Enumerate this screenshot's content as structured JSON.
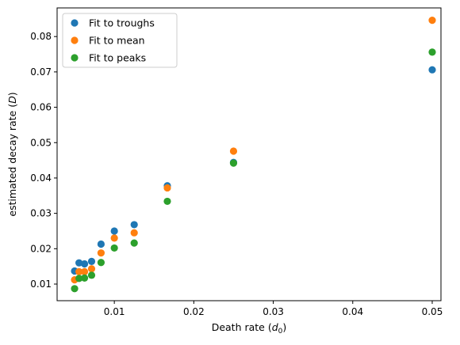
{
  "chart_data": {
    "type": "scatter",
    "xlabel_main": "Death rate (",
    "xlabel_sym": "d",
    "xlabel_sub": "0",
    "xlabel_end": ")",
    "ylabel_main": "estimated decay rate (",
    "ylabel_sym": "D",
    "ylabel_end": ")",
    "xlim": [
      0.0028,
      0.0511
    ],
    "ylim": [
      0.0053,
      0.0881
    ],
    "x_ticks": [
      0.01,
      0.02,
      0.03,
      0.04,
      0.05
    ],
    "x_tick_labels": [
      "0.01",
      "0.02",
      "0.03",
      "0.04",
      "0.05"
    ],
    "y_ticks": [
      0.01,
      0.02,
      0.03,
      0.04,
      0.05,
      0.06,
      0.07,
      0.08
    ],
    "y_tick_labels": [
      "0.01",
      "0.02",
      "0.03",
      "0.04",
      "0.05",
      "0.06",
      "0.07",
      "0.08"
    ],
    "grid": false,
    "legend_position": "top-left",
    "series": [
      {
        "name": "Fit to troughs",
        "color": "#1f77b4",
        "points": [
          [
            0.005,
            0.0137
          ],
          [
            0.00556,
            0.016
          ],
          [
            0.00625,
            0.0157
          ],
          [
            0.00714,
            0.0164
          ],
          [
            0.00833,
            0.0213
          ],
          [
            0.01,
            0.025
          ],
          [
            0.0125,
            0.0268
          ],
          [
            0.01667,
            0.0378
          ],
          [
            0.025,
            0.0444
          ],
          [
            0.05,
            0.0706
          ]
        ]
      },
      {
        "name": "Fit to mean",
        "color": "#ff7f0e",
        "points": [
          [
            0.005,
            0.0112
          ],
          [
            0.00556,
            0.0135
          ],
          [
            0.00625,
            0.0135
          ],
          [
            0.00714,
            0.0143
          ],
          [
            0.00833,
            0.0188
          ],
          [
            0.01,
            0.023
          ],
          [
            0.0125,
            0.0245
          ],
          [
            0.01667,
            0.0372
          ],
          [
            0.025,
            0.0476
          ],
          [
            0.05,
            0.0846
          ]
        ]
      },
      {
        "name": "Fit to peaks",
        "color": "#2ca02c",
        "points": [
          [
            0.005,
            0.0087
          ],
          [
            0.00556,
            0.0116
          ],
          [
            0.00625,
            0.0117
          ],
          [
            0.00714,
            0.0125
          ],
          [
            0.00833,
            0.0161
          ],
          [
            0.01,
            0.0202
          ],
          [
            0.0125,
            0.0216
          ],
          [
            0.01667,
            0.0334
          ],
          [
            0.025,
            0.0442
          ],
          [
            0.05,
            0.0756
          ]
        ]
      }
    ]
  }
}
